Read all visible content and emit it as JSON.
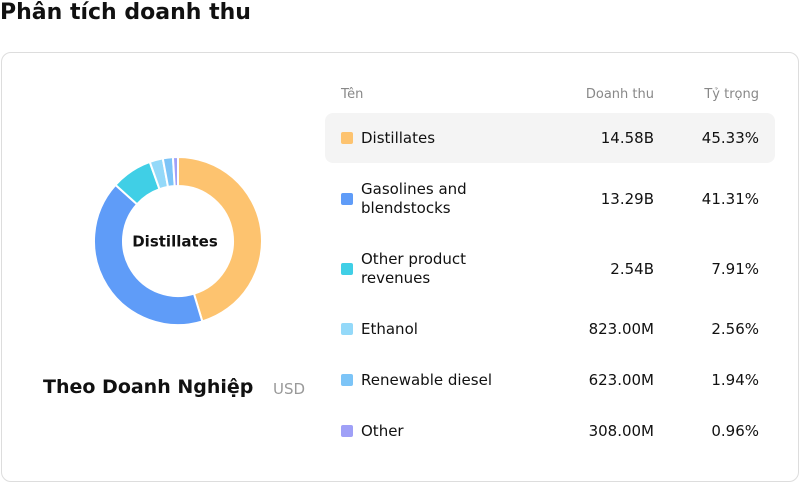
{
  "title": "Phân tích doanh thu",
  "chart_data": {
    "type": "pie",
    "categories": [
      "Distillates",
      "Gasolines and blendstocks",
      "Other product revenues",
      "Ethanol",
      "Renewable diesel",
      "Other"
    ],
    "values": [
      45.33,
      41.31,
      7.91,
      2.56,
      1.94,
      0.96
    ],
    "value_labels": [
      "45.33%",
      "41.31%",
      "7.91%",
      "2.56%",
      "1.94%",
      "0.96%"
    ],
    "colors": [
      "#fdc36f",
      "#5f9cf8",
      "#40cfe6",
      "#94d9f9",
      "#7cc4f7",
      "#9fa0f7"
    ]
  },
  "table": {
    "headers": [
      "Tên",
      "Doanh thu",
      "Tỷ trọng"
    ],
    "revenue": [
      "14.58B",
      "13.29B",
      "2.54B",
      "823.00M",
      "623.00M",
      "308.00M"
    ]
  },
  "footer": {
    "label": "Theo Doanh Nghiệp",
    "unit": "USD"
  }
}
